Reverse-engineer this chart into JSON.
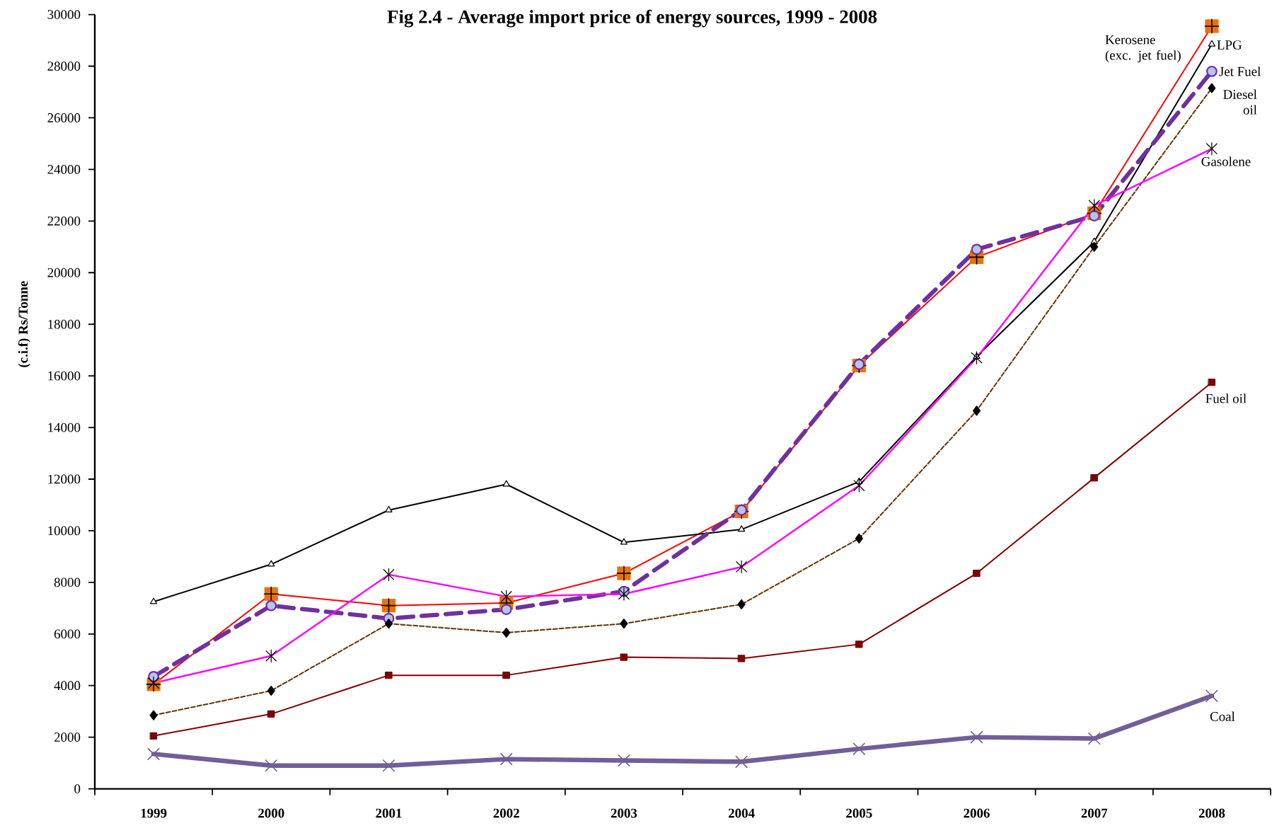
{
  "chart_data": {
    "type": "line",
    "title": "Fig 2.4 - Average import price of energy sources, 1999 - 2008",
    "ylabel": "(c.i.f) Rs/Tonne",
    "categories": [
      "1999",
      "2000",
      "2001",
      "2002",
      "2003",
      "2004",
      "2005",
      "2006",
      "2007",
      "2008"
    ],
    "ylim": [
      0,
      30000
    ],
    "yticks": [
      0,
      2000,
      4000,
      6000,
      8000,
      10000,
      12000,
      14000,
      16000,
      18000,
      20000,
      22000,
      24000,
      26000,
      28000,
      30000
    ],
    "series": [
      {
        "name": "Kerosene (exc. jet fuel)",
        "color": "#ff0000",
        "marker": "square",
        "line_style": "solid",
        "values": [
          4050,
          7550,
          7100,
          7200,
          8350,
          10750,
          16400,
          20600,
          22300,
          29550
        ]
      },
      {
        "name": "LPG",
        "color": "#000000",
        "marker": "triangle",
        "line_style": "solid",
        "values": [
          7250,
          8700,
          10800,
          11800,
          9550,
          10050,
          11900,
          16750,
          21200,
          28850
        ]
      },
      {
        "name": "Jet Fuel",
        "color": "#7030a0",
        "marker": "circle",
        "line_style": "dashed",
        "values": [
          4350,
          7100,
          6600,
          6950,
          7650,
          10800,
          16450,
          20900,
          22200,
          27800
        ]
      },
      {
        "name": "Diesel oil",
        "color": "#663300",
        "marker": "diamond",
        "line_style": "dashed",
        "values": [
          2850,
          3800,
          6400,
          6050,
          6400,
          7150,
          9700,
          14650,
          21000,
          27150
        ]
      },
      {
        "name": "Gasolene",
        "color": "#ff00ff",
        "marker": "cross",
        "line_style": "solid",
        "values": [
          4100,
          5150,
          8300,
          7450,
          7550,
          8600,
          11750,
          16700,
          22600,
          24800
        ]
      },
      {
        "name": "Fuel oil",
        "color": "#800000",
        "marker": "square",
        "line_style": "solid",
        "values": [
          2050,
          2900,
          4400,
          4400,
          5100,
          5050,
          5600,
          8350,
          12050,
          15750
        ]
      },
      {
        "name": "Coal",
        "color": "#725e99",
        "marker": "cross",
        "line_style": "solid",
        "values": [
          1350,
          900,
          900,
          1150,
          1100,
          1050,
          1550,
          2000,
          1950,
          3600
        ]
      }
    ]
  }
}
